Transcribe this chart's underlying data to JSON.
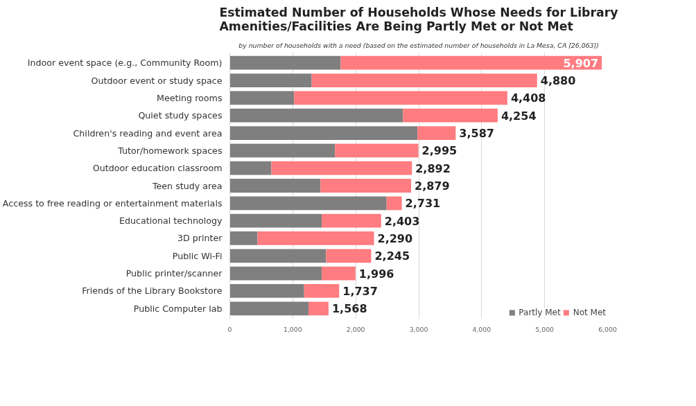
{
  "chart_data": {
    "type": "bar",
    "orientation": "horizontal",
    "stacked": true,
    "title": "Estimated Number of Households Whose Needs for Library\nAmenities/Facilities Are Being Partly Met or Not Met",
    "subtitle": "by number of households with a need (based on the estimated number of households in La Mesa, CA [26,063])",
    "categories": [
      "Indoor event space (e.g., Community Room)",
      "Outdoor event or study space",
      "Meeting rooms",
      "Quiet study spaces",
      "Children's reading and event area",
      "Tutor/homework spaces",
      "Outdoor education classroom",
      "Teen study area",
      "Access to free reading or entertainment materials",
      "Educational technology",
      "3D printer",
      "Public Wi-Fi",
      "Public printer/scanner",
      "Friends of the Library Bookstore",
      "Public Computer lab"
    ],
    "series": [
      {
        "name": "Partly Met",
        "color": "#7f7f7f",
        "values": [
          1760,
          1300,
          1020,
          2750,
          2980,
          1670,
          660,
          1440,
          2490,
          1460,
          440,
          1530,
          1460,
          1180,
          1250
        ]
      },
      {
        "name": "Not Met",
        "color": "#ff7c80",
        "values": [
          4147,
          3580,
          3388,
          1504,
          607,
          1325,
          2232,
          1439,
          241,
          943,
          1850,
          715,
          536,
          557,
          318
        ]
      }
    ],
    "totals": [
      "5,907",
      "4,880",
      "4,408",
      "4,254",
      "3,587",
      "2,995",
      "2,892",
      "2,879",
      "2,731",
      "2,403",
      "2,290",
      "2,245",
      "1,996",
      "1,737",
      "1,568"
    ],
    "xlim": [
      0,
      6000
    ],
    "xticks": [
      {
        "value": 0,
        "label": "0"
      },
      {
        "value": 1000,
        "label": "1,000"
      },
      {
        "value": 2000,
        "label": "2,000"
      },
      {
        "value": 3000,
        "label": "3,000"
      },
      {
        "value": 4000,
        "label": "4,000"
      },
      {
        "value": 5000,
        "label": "5,000"
      },
      {
        "value": 6000,
        "label": "6,000"
      }
    ],
    "grid": "x",
    "legend": "bottom right"
  }
}
